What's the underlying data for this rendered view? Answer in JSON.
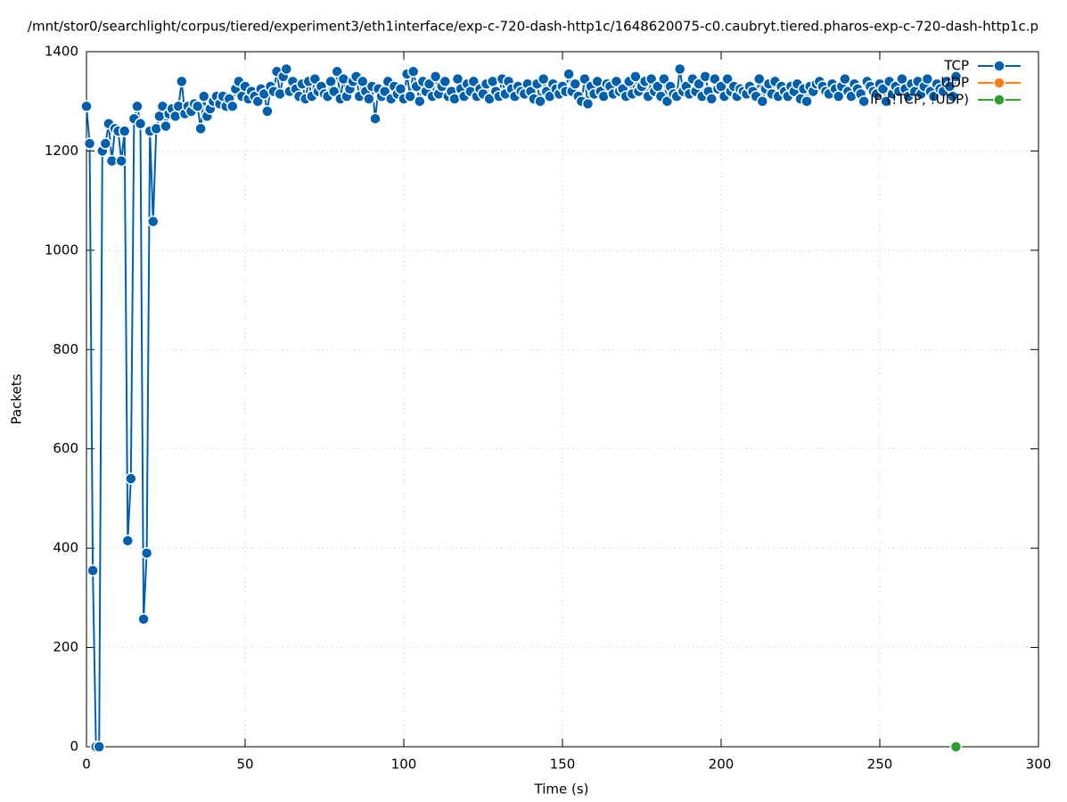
{
  "chart_data": {
    "type": "line",
    "title": "/mnt/stor0/searchlight/corpus/tiered/experiment3/eth1interface/exp-c-720-dash-http1c/1648620075-c0.caubryt.tiered.pharos-exp-c-720-dash-http1c.p",
    "xlabel": "Time (s)",
    "ylabel": "Packets",
    "xlim": [
      0,
      300
    ],
    "xticks": [
      0,
      50,
      100,
      150,
      200,
      250,
      300
    ],
    "ylim": [
      0,
      1400
    ],
    "yticks": [
      0,
      200,
      400,
      600,
      800,
      1000,
      1200,
      1400
    ],
    "grid": true,
    "legend": "top-right",
    "series": [
      {
        "name": "TCP",
        "color": "#0060ad",
        "x": [
          0,
          1,
          2,
          3,
          4,
          5,
          6,
          7,
          8,
          9,
          10,
          11,
          12,
          13,
          14,
          15,
          16,
          17,
          18,
          19,
          20,
          21,
          22,
          23,
          24,
          25,
          26,
          27,
          28,
          29,
          30,
          31,
          32,
          33,
          34,
          35,
          36,
          37,
          38,
          39,
          40,
          41,
          42,
          43,
          44,
          45,
          46,
          47,
          48,
          49,
          50,
          51,
          52,
          53,
          54,
          55,
          56,
          57,
          58,
          59,
          60,
          61,
          62,
          63,
          64,
          65,
          66,
          67,
          68,
          69,
          70,
          71,
          72,
          73,
          74,
          75,
          76,
          77,
          78,
          79,
          80,
          81,
          82,
          83,
          84,
          85,
          86,
          87,
          88,
          89,
          90,
          91,
          92,
          93,
          94,
          95,
          96,
          97,
          98,
          99,
          100,
          101,
          102,
          103,
          104,
          105,
          106,
          107,
          108,
          109,
          110,
          111,
          112,
          113,
          114,
          115,
          116,
          117,
          118,
          119,
          120,
          121,
          122,
          123,
          124,
          125,
          126,
          127,
          128,
          129,
          130,
          131,
          132,
          133,
          134,
          135,
          136,
          137,
          138,
          139,
          140,
          141,
          142,
          143,
          144,
          145,
          146,
          147,
          148,
          149,
          150,
          151,
          152,
          153,
          154,
          155,
          156,
          157,
          158,
          159,
          160,
          161,
          162,
          163,
          164,
          165,
          166,
          167,
          168,
          169,
          170,
          171,
          172,
          173,
          174,
          175,
          176,
          177,
          178,
          179,
          180,
          181,
          182,
          183,
          184,
          185,
          186,
          187,
          188,
          189,
          190,
          191,
          192,
          193,
          194,
          195,
          196,
          197,
          198,
          199,
          200,
          201,
          202,
          203,
          204,
          205,
          206,
          207,
          208,
          209,
          210,
          211,
          212,
          213,
          214,
          215,
          216,
          217,
          218,
          219,
          220,
          221,
          222,
          223,
          224,
          225,
          226,
          227,
          228,
          229,
          230,
          231,
          232,
          233,
          234,
          235,
          236,
          237,
          238,
          239,
          240,
          241,
          242,
          243,
          244,
          245,
          246,
          247,
          248,
          249,
          250,
          251,
          252,
          253,
          254,
          255,
          256,
          257,
          258,
          259,
          260,
          261,
          262,
          263,
          264,
          265,
          266,
          267,
          268,
          269,
          270,
          271,
          272,
          273,
          274
        ],
        "values": [
          1290,
          1215,
          355,
          0,
          0,
          1200,
          1215,
          1255,
          1180,
          1245,
          1240,
          1180,
          1240,
          415,
          540,
          1265,
          1290,
          1255,
          257,
          390,
          1240,
          1058,
          1245,
          1270,
          1290,
          1250,
          1275,
          1285,
          1270,
          1290,
          1340,
          1275,
          1290,
          1280,
          1295,
          1290,
          1245,
          1310,
          1270,
          1285,
          1300,
          1310,
          1295,
          1310,
          1290,
          1305,
          1290,
          1325,
          1340,
          1310,
          1330,
          1305,
          1320,
          1310,
          1300,
          1325,
          1315,
          1280,
          1330,
          1320,
          1360,
          1315,
          1350,
          1365,
          1320,
          1340,
          1325,
          1310,
          1335,
          1305,
          1340,
          1310,
          1345,
          1320,
          1330,
          1315,
          1310,
          1340,
          1320,
          1360,
          1305,
          1345,
          1310,
          1325,
          1340,
          1350,
          1310,
          1340,
          1320,
          1305,
          1330,
          1265,
          1325,
          1310,
          1320,
          1340,
          1305,
          1330,
          1315,
          1325,
          1305,
          1355,
          1310,
          1360,
          1330,
          1300,
          1340,
          1320,
          1335,
          1310,
          1350,
          1315,
          1330,
          1340,
          1310,
          1320,
          1305,
          1345,
          1325,
          1310,
          1335,
          1320,
          1340,
          1310,
          1325,
          1315,
          1335,
          1305,
          1340,
          1320,
          1310,
          1345,
          1315,
          1340,
          1325,
          1310,
          1330,
          1320,
          1315,
          1335,
          1320,
          1305,
          1335,
          1300,
          1345,
          1320,
          1310,
          1335,
          1325,
          1315,
          1330,
          1320,
          1355,
          1320,
          1335,
          1310,
          1300,
          1345,
          1295,
          1330,
          1315,
          1340,
          1320,
          1310,
          1335,
          1330,
          1315,
          1340,
          1320,
          1325,
          1310,
          1340,
          1315,
          1350,
          1320,
          1330,
          1340,
          1310,
          1345,
          1320,
          1330,
          1310,
          1345,
          1300,
          1330,
          1315,
          1310,
          1365,
          1320,
          1330,
          1315,
          1345,
          1320,
          1335,
          1310,
          1350,
          1320,
          1305,
          1345,
          1325,
          1330,
          1310,
          1345,
          1320,
          1330,
          1310,
          1325,
          1320,
          1315,
          1330,
          1320,
          1310,
          1345,
          1300,
          1325,
          1335,
          1315,
          1340,
          1310,
          1330,
          1320,
          1310,
          1330,
          1320,
          1335,
          1305,
          1325,
          1300,
          1330,
          1320,
          1335,
          1340,
          1330,
          1320,
          1315,
          1335,
          1325,
          1310,
          1330,
          1345,
          1320,
          1310,
          1335,
          1325,
          1315,
          1300,
          1340,
          1330,
          1320,
          1315,
          1335,
          1325,
          1300,
          1340,
          1315,
          1330,
          1320,
          1345,
          1325,
          1310,
          1335,
          1320,
          1340,
          1315,
          1330,
          1345,
          1320,
          1310,
          1335,
          1325,
          1320,
          1340,
          1330,
          1310,
          1350
        ]
      },
      {
        "name": "UDP",
        "color": "#ff7f0e",
        "x": [],
        "values": []
      },
      {
        "name": "IP (!TCP, !UDP)",
        "color": "#2ca02c",
        "x": [
          274
        ],
        "values": [
          0
        ]
      }
    ]
  }
}
